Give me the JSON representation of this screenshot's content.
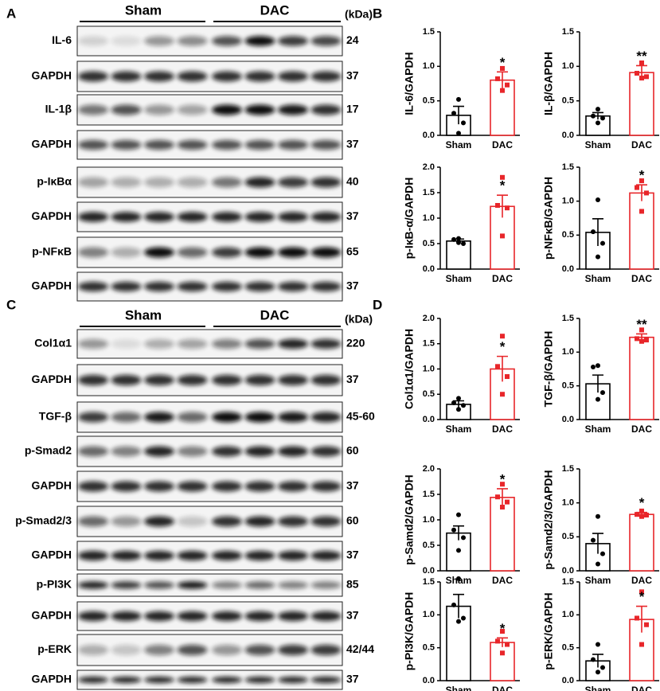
{
  "panel_labels": [
    "A",
    "B",
    "C",
    "D"
  ],
  "blots": [
    {
      "groups": [
        "Sham",
        "DAC"
      ],
      "unit": "(kDa)",
      "rows": [
        {
          "label": "IL-6",
          "kda": 24
        },
        {
          "label": "GAPDH",
          "kda": 37
        },
        {
          "label": "IL-1β",
          "kda": 17
        },
        {
          "label": "GAPDH",
          "kda": 37
        },
        {
          "label": "p-IκBα",
          "kda": 40
        },
        {
          "label": "GAPDH",
          "kda": 37
        },
        {
          "label": "p-NFκB",
          "kda": 65
        },
        {
          "label": "GAPDH",
          "kda": 37
        }
      ]
    },
    {
      "groups": [
        "Sham",
        "DAC"
      ],
      "unit": "(kDa)",
      "rows": [
        {
          "label": "Col1α1",
          "kda": 220
        },
        {
          "label": "GAPDH",
          "kda": 37
        },
        {
          "label": "TGF-β",
          "kda": "45-60"
        },
        {
          "label": "p-Smad2",
          "kda": 60
        },
        {
          "label": "GAPDH",
          "kda": 37
        },
        {
          "label": "p-Smad2/3",
          "kda": 60
        },
        {
          "label": "GAPDH",
          "kda": 37
        },
        {
          "label": "p-PI3K",
          "kda": 85
        },
        {
          "label": "GAPDH",
          "kda": 37
        },
        {
          "label": "p-ERK",
          "kda": "42/44"
        },
        {
          "label": "GAPDH",
          "kda": 37
        }
      ]
    }
  ],
  "chart_data": [
    {
      "type": "bar",
      "ylabel": "IL-6/GAPDH",
      "categories": [
        "Sham",
        "DAC"
      ],
      "colors": [
        "#000000",
        "#e8262a"
      ],
      "values": [
        0.29,
        0.8
      ],
      "errors": [
        0.13,
        0.12
      ],
      "points": [
        [
          0.52,
          0.32,
          0.18,
          0.03
        ],
        [
          0.97,
          0.82,
          0.73,
          0.65
        ]
      ],
      "significance": [
        null,
        "*"
      ],
      "ylim": [
        0,
        1.5
      ],
      "yticks": [
        {
          "value": 0,
          "label": "0.0"
        },
        0.5,
        {
          "value": 1,
          "label": "1.0"
        },
        1.5
      ]
    },
    {
      "type": "bar",
      "ylabel": "IL-β/GAPDH",
      "categories": [
        "Sham",
        "DAC"
      ],
      "colors": [
        "#000000",
        "#e8262a"
      ],
      "values": [
        0.28,
        0.91
      ],
      "errors": [
        0.05,
        0.1
      ],
      "points": [
        [
          0.38,
          0.28,
          0.25,
          0.18
        ],
        [
          1.05,
          0.9,
          0.85,
          0.83
        ]
      ],
      "significance": [
        null,
        "**"
      ],
      "ylim": [
        0,
        1.5
      ],
      "yticks": [
        {
          "value": 0,
          "label": "0.0"
        },
        0.5,
        {
          "value": 1,
          "label": "1.0"
        },
        1.5
      ]
    },
    {
      "type": "bar",
      "ylabel": "p-IκB-α/GAPDH",
      "categories": [
        "Sham",
        "DAC"
      ],
      "colors": [
        "#000000",
        "#e8262a"
      ],
      "values": [
        0.55,
        1.23
      ],
      "errors": [
        0.04,
        0.22
      ],
      "points": [
        [
          0.6,
          0.58,
          0.5,
          0.52
        ],
        [
          1.8,
          1.25,
          1.2,
          0.65
        ]
      ],
      "significance": [
        null,
        "*"
      ],
      "ylim": [
        0,
        2
      ],
      "yticks": [
        {
          "value": 0,
          "label": "0.0"
        },
        0.5,
        {
          "value": 1,
          "label": "1.0"
        },
        1.5,
        {
          "value": 2,
          "label": "2.0"
        }
      ]
    },
    {
      "type": "bar",
      "ylabel": "p-NFκB/GAPDH",
      "categories": [
        "Sham",
        "DAC"
      ],
      "colors": [
        "#000000",
        "#e8262a"
      ],
      "values": [
        0.54,
        1.12
      ],
      "errors": [
        0.2,
        0.12
      ],
      "points": [
        [
          1.02,
          0.55,
          0.38,
          0.18
        ],
        [
          1.3,
          1.2,
          1.12,
          0.85
        ]
      ],
      "significance": [
        null,
        "*"
      ],
      "ylim": [
        0,
        1.5
      ],
      "yticks": [
        {
          "value": 0,
          "label": "0.0"
        },
        0.5,
        {
          "value": 1,
          "label": "1.0"
        },
        1.5
      ]
    },
    {
      "type": "bar",
      "ylabel": "Col1α1/GAPDH",
      "categories": [
        "Sham",
        "DAC"
      ],
      "colors": [
        "#000000",
        "#e8262a"
      ],
      "values": [
        0.3,
        1.0
      ],
      "errors": [
        0.07,
        0.25
      ],
      "points": [
        [
          0.42,
          0.33,
          0.28,
          0.2
        ],
        [
          1.65,
          1.05,
          0.85,
          0.5
        ]
      ],
      "significance": [
        null,
        "*"
      ],
      "ylim": [
        0,
        2
      ],
      "yticks": [
        {
          "value": 0,
          "label": "0.0"
        },
        0.5,
        {
          "value": 1,
          "label": "1.0"
        },
        1.5,
        {
          "value": 2,
          "label": "2.0"
        }
      ]
    },
    {
      "type": "bar",
      "ylabel": "TGF-β/GAPDH",
      "categories": [
        "Sham",
        "DAC"
      ],
      "colors": [
        "#000000",
        "#e8262a"
      ],
      "values": [
        0.53,
        1.22
      ],
      "errors": [
        0.13,
        0.05
      ],
      "points": [
        [
          0.8,
          0.78,
          0.4,
          0.3
        ],
        [
          1.33,
          1.2,
          1.18,
          1.16
        ]
      ],
      "significance": [
        null,
        "**"
      ],
      "ylim": [
        0,
        1.5
      ],
      "yticks": [
        {
          "value": 0,
          "label": "0.0"
        },
        0.5,
        {
          "value": 1,
          "label": "1.0"
        },
        1.5
      ]
    },
    {
      "type": "bar",
      "ylabel": "p-Samd2/GAPDH",
      "categories": [
        "Sham",
        "DAC"
      ],
      "colors": [
        "#000000",
        "#e8262a"
      ],
      "values": [
        0.74,
        1.44
      ],
      "errors": [
        0.14,
        0.17
      ],
      "points": [
        [
          1.1,
          0.8,
          0.65,
          0.4
        ],
        [
          1.7,
          1.45,
          1.35,
          1.25
        ]
      ],
      "significance": [
        null,
        "*"
      ],
      "ylim": [
        0,
        2
      ],
      "yticks": [
        {
          "value": 0,
          "label": "0.0"
        },
        0.5,
        {
          "value": 1,
          "label": "1.0"
        },
        1.5,
        {
          "value": 2,
          "label": "2.0"
        }
      ]
    },
    {
      "type": "bar",
      "ylabel": "p-Samd2/3/GAPDH",
      "categories": [
        "Sham",
        "DAC"
      ],
      "colors": [
        "#000000",
        "#e8262a"
      ],
      "values": [
        0.4,
        0.83
      ],
      "errors": [
        0.15,
        0.03
      ],
      "points": [
        [
          0.8,
          0.45,
          0.25,
          0.1
        ],
        [
          0.88,
          0.83,
          0.82,
          0.8
        ]
      ],
      "significance": [
        null,
        "*"
      ],
      "ylim": [
        0,
        1.5
      ],
      "yticks": [
        {
          "value": 0,
          "label": "0.0"
        },
        0.5,
        {
          "value": 1,
          "label": "1.0"
        },
        1.5
      ]
    },
    {
      "type": "bar",
      "ylabel": "p-PI3K/GAPDH",
      "categories": [
        "Sham",
        "DAC"
      ],
      "colors": [
        "#000000",
        "#e8262a"
      ],
      "values": [
        1.13,
        0.58
      ],
      "errors": [
        0.18,
        0.07
      ],
      "points": [
        [
          1.55,
          1.15,
          0.95,
          0.9
        ],
        [
          0.75,
          0.6,
          0.55,
          0.42
        ]
      ],
      "significance": [
        null,
        "*"
      ],
      "ylim": [
        0,
        1.5
      ],
      "yticks": [
        {
          "value": 0,
          "label": "0.0"
        },
        0.5,
        {
          "value": 1,
          "label": "1.0"
        },
        1.5
      ]
    },
    {
      "type": "bar",
      "ylabel": "p-ERK/GAPDH",
      "categories": [
        "Sham",
        "DAC"
      ],
      "colors": [
        "#000000",
        "#e8262a"
      ],
      "values": [
        0.3,
        0.93
      ],
      "errors": [
        0.1,
        0.2
      ],
      "points": [
        [
          0.55,
          0.32,
          0.2,
          0.13
        ],
        [
          1.35,
          0.95,
          0.85,
          0.55
        ]
      ],
      "significance": [
        null,
        "*"
      ],
      "ylim": [
        0,
        1.5
      ],
      "yticks": [
        {
          "value": 0,
          "label": "0.0"
        },
        0.5,
        {
          "value": 1,
          "label": "1.0"
        },
        1.5
      ]
    }
  ]
}
